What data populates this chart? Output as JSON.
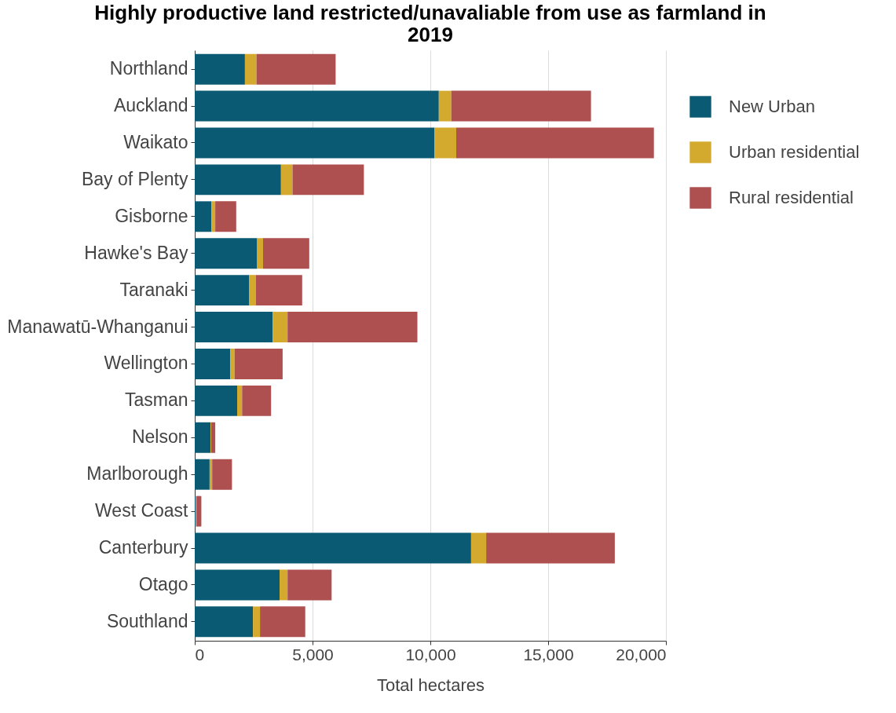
{
  "chart_data": {
    "type": "bar",
    "orientation": "horizontal",
    "stacked": true,
    "title": "Highly productive land restricted/unavaliable from use as farmland in 2019",
    "xlabel": "Total hectares",
    "categories": [
      "Northland",
      "Auckland",
      "Waikato",
      "Bay of Plenty",
      "Gisborne",
      "Hawke's Bay",
      "Taranaki",
      "Manawatū-Whanganui",
      "Wellington",
      "Tasman",
      "Nelson",
      "Marlborough",
      "West Coast",
      "Canterbury",
      "Otago",
      "Southland"
    ],
    "series": [
      {
        "name": "New Urban",
        "color": "#0b5a73",
        "values": [
          2130,
          10360,
          10180,
          3660,
          710,
          2650,
          2300,
          3310,
          1510,
          1800,
          670,
          630,
          40,
          11730,
          3600,
          2470
        ]
      },
      {
        "name": "Urban residential",
        "color": "#d4aa2e",
        "values": [
          490,
          530,
          920,
          490,
          160,
          250,
          300,
          630,
          180,
          210,
          30,
          110,
          30,
          640,
          340,
          300
        ]
      },
      {
        "name": "Rural residential",
        "color": "#ae4f50",
        "values": [
          3360,
          5930,
          8390,
          3030,
          890,
          1960,
          1960,
          5510,
          2040,
          1230,
          170,
          840,
          210,
          5460,
          1870,
          1920
        ]
      }
    ],
    "xlim": [
      0,
      20000
    ],
    "xticks": [
      0,
      {
        "value": 5000,
        "label": "5,000"
      },
      {
        "value": 10000,
        "label": "10,000"
      },
      {
        "value": 15000,
        "label": "15,000"
      },
      {
        "value": 20000,
        "label": "20,000"
      }
    ],
    "grid": "x",
    "legend": "right"
  }
}
